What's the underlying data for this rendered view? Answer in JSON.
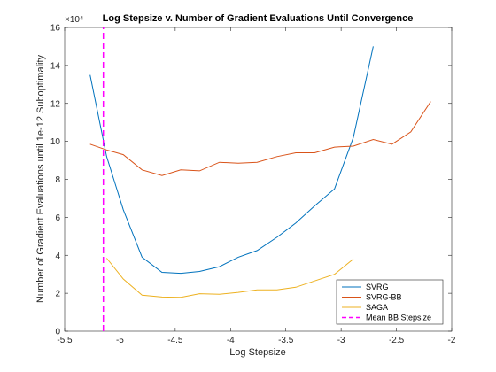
{
  "chart_data": {
    "type": "line",
    "title": "Log Stepsize v.  Number of Gradient Evaluations Until Convergence",
    "xlabel": "Log Stepsize",
    "ylabel": "Number of Gradient Evaluations until 1e-12 Suboptimality",
    "xlim": [
      -5.5,
      -2
    ],
    "ylim": [
      0,
      160000
    ],
    "x_ticks": [
      -5.5,
      -5,
      -4.5,
      -4,
      -3.5,
      -3,
      -2.5,
      -2
    ],
    "x_tick_labels": [
      "-5.5",
      "-5",
      "-4.5",
      "-4",
      "-3.5",
      "-3",
      "-2.5",
      "-2"
    ],
    "y_ticks": [
      0,
      20000,
      40000,
      60000,
      80000,
      100000,
      120000,
      140000,
      160000
    ],
    "y_tick_labels": [
      "0",
      "2",
      "4",
      "6",
      "8",
      "10",
      "12",
      "14",
      "16"
    ],
    "y_exponent_label": "×10⁴",
    "grid": false,
    "legend_position": "bottom-right",
    "series": [
      {
        "name": "SVRG",
        "color": "#0072bd",
        "style": "solid",
        "x": [
          -5.27,
          -5.12,
          -4.97,
          -4.8,
          -4.62,
          -4.45,
          -4.28,
          -4.1,
          -3.93,
          -3.76,
          -3.58,
          -3.41,
          -3.24,
          -3.06,
          -2.89,
          -2.71
        ],
        "y": [
          135000,
          92000,
          64000,
          39000,
          31000,
          30500,
          31500,
          34000,
          39000,
          42500,
          49500,
          57000,
          66000,
          75000,
          102000,
          150000
        ]
      },
      {
        "name": "SVRG-BB",
        "color": "#d95319",
        "style": "solid",
        "x": [
          -5.27,
          -5.12,
          -4.97,
          -4.8,
          -4.62,
          -4.45,
          -4.28,
          -4.1,
          -3.93,
          -3.76,
          -3.58,
          -3.41,
          -3.24,
          -3.06,
          -2.89,
          -2.71,
          -2.54,
          -2.37,
          -2.19
        ],
        "y": [
          98500,
          95500,
          93000,
          85000,
          82000,
          85000,
          84500,
          89000,
          88500,
          89000,
          92000,
          94000,
          94000,
          97000,
          97500,
          101000,
          98500,
          105000,
          121000
        ]
      },
      {
        "name": "SAGA",
        "color": "#edb120",
        "style": "solid",
        "x": [
          -5.12,
          -4.97,
          -4.8,
          -4.62,
          -4.45,
          -4.28,
          -4.1,
          -3.93,
          -3.76,
          -3.58,
          -3.41,
          -3.24,
          -3.06,
          -2.89
        ],
        "y": [
          38500,
          27500,
          19000,
          18000,
          17800,
          19800,
          19500,
          20500,
          21800,
          21800,
          23200,
          26500,
          30000,
          38000
        ]
      },
      {
        "name": "Mean BB Stepsize",
        "color": "#ff00ff",
        "style": "dashed",
        "x": [
          -5.15,
          -5.15
        ],
        "y": [
          0,
          160000
        ]
      }
    ]
  }
}
